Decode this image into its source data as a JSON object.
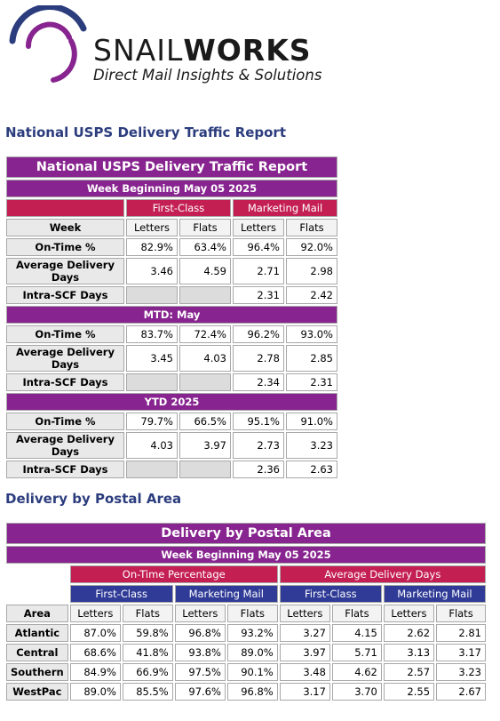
{
  "logo": {
    "brand_part1": "SNAIL",
    "brand_part2": "WORKS",
    "tagline": "Direct Mail Insights & Solutions",
    "colors": {
      "arc_dark": "#2c3d7e",
      "arc_purple": "#87248f",
      "arc_magenta": "#b0358f"
    }
  },
  "section1": {
    "heading": "National USPS Delivery Traffic Report",
    "table": {
      "title": "National USPS Delivery Traffic Report",
      "week": "Week Beginning May 05 2025",
      "groups": [
        "First-Class",
        "Marketing Mail"
      ],
      "col_label": "Week",
      "cols": [
        "Letters",
        "Flats",
        "Letters",
        "Flats"
      ],
      "week_rows": [
        {
          "label": "On-Time %",
          "values": [
            "82.9%",
            "63.4%",
            "96.4%",
            "92.0%"
          ]
        },
        {
          "label": "Average Delivery Days",
          "values": [
            "3.46",
            "4.59",
            "2.71",
            "2.98"
          ]
        },
        {
          "label": "Intra-SCF Days",
          "values": [
            "",
            "",
            "2.31",
            "2.42"
          ]
        }
      ],
      "mtd_title": "MTD: May",
      "mtd_rows": [
        {
          "label": "On-Time %",
          "values": [
            "83.7%",
            "72.4%",
            "96.2%",
            "93.0%"
          ]
        },
        {
          "label": "Average Delivery Days",
          "values": [
            "3.45",
            "4.03",
            "2.78",
            "2.85"
          ]
        },
        {
          "label": "Intra-SCF Days",
          "values": [
            "",
            "",
            "2.34",
            "2.31"
          ]
        }
      ],
      "ytd_title": "YTD 2025",
      "ytd_rows": [
        {
          "label": "On-Time %",
          "values": [
            "79.7%",
            "66.5%",
            "95.1%",
            "91.0%"
          ]
        },
        {
          "label": "Average Delivery Days",
          "values": [
            "4.03",
            "3.97",
            "2.73",
            "3.23"
          ]
        },
        {
          "label": "Intra-SCF Days",
          "values": [
            "",
            "",
            "2.36",
            "2.63"
          ]
        }
      ]
    }
  },
  "section2": {
    "heading": "Delivery by Postal Area",
    "table": {
      "title": "Delivery by Postal Area",
      "week": "Week Beginning May 05 2025",
      "top_groups": [
        "On-Time Percentage",
        "Average Delivery Days"
      ],
      "sub_groups": [
        "First-Class",
        "Marketing Mail",
        "First-Class",
        "Marketing Mail"
      ],
      "area_label": "Area",
      "cols": [
        "Letters",
        "Flats",
        "Letters",
        "Flats",
        "Letters",
        "Flats",
        "Letters",
        "Flats"
      ],
      "rows": [
        {
          "area": "Atlantic",
          "values": [
            "87.0%",
            "59.8%",
            "96.8%",
            "93.2%",
            "3.27",
            "4.15",
            "2.62",
            "2.81"
          ]
        },
        {
          "area": "Central",
          "values": [
            "68.6%",
            "41.8%",
            "93.8%",
            "89.0%",
            "3.97",
            "5.71",
            "3.13",
            "3.17"
          ]
        },
        {
          "area": "Southern",
          "values": [
            "84.9%",
            "66.9%",
            "97.5%",
            "90.1%",
            "3.48",
            "4.62",
            "2.57",
            "3.23"
          ]
        },
        {
          "area": "WestPac",
          "values": [
            "89.0%",
            "85.5%",
            "97.6%",
            "96.8%",
            "3.17",
            "3.70",
            "2.55",
            "2.67"
          ]
        }
      ]
    }
  }
}
